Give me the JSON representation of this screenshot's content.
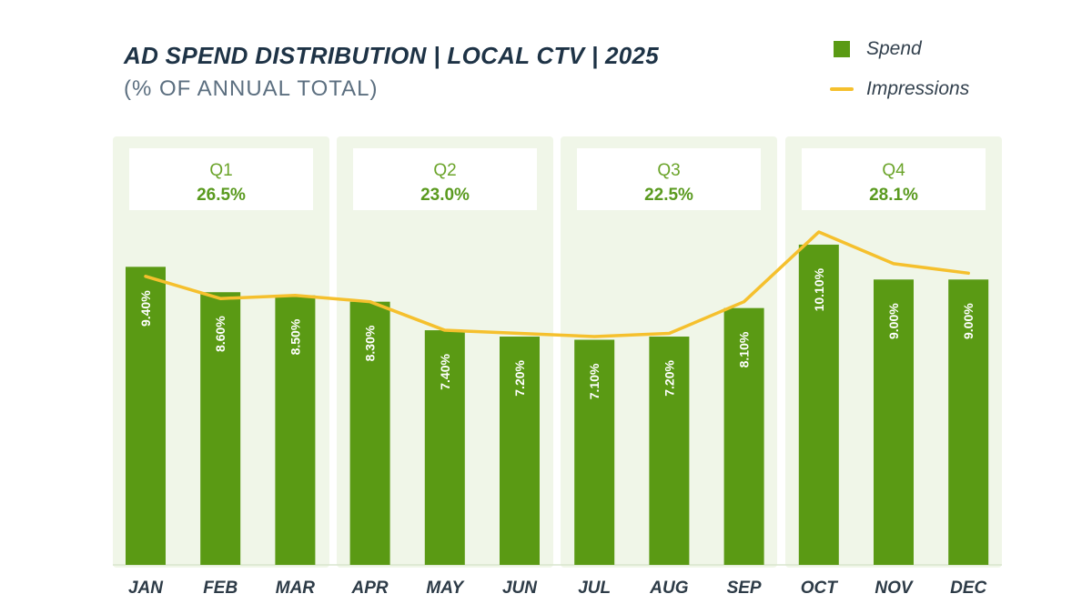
{
  "chart_data": {
    "type": "bar",
    "title": "AD SPEND DISTRIBUTION | LOCAL CTV | 2025",
    "subtitle": "(% OF ANNUAL TOTAL)",
    "categories": [
      "JAN",
      "FEB",
      "MAR",
      "APR",
      "MAY",
      "JUN",
      "JUL",
      "AUG",
      "SEP",
      "OCT",
      "NOV",
      "DEC"
    ],
    "series": [
      {
        "name": "Spend",
        "kind": "bar",
        "color": "#5a9a14",
        "values": [
          9.4,
          8.6,
          8.5,
          8.3,
          7.4,
          7.2,
          7.1,
          7.2,
          8.1,
          10.1,
          9.0,
          9.0
        ],
        "labels": [
          "9.40%",
          "8.60%",
          "8.50%",
          "8.30%",
          "7.40%",
          "7.20%",
          "7.10%",
          "7.20%",
          "8.10%",
          "10.10%",
          "9.00%",
          "9.00%"
        ]
      },
      {
        "name": "Impressions",
        "kind": "line",
        "color": "#f5c02d",
        "values": [
          9.1,
          8.4,
          8.5,
          8.3,
          7.4,
          7.3,
          7.2,
          7.3,
          8.3,
          10.5,
          9.5,
          9.2
        ]
      }
    ],
    "quarters": [
      {
        "name": "Q1",
        "value": "26.5%",
        "months": [
          0,
          2
        ]
      },
      {
        "name": "Q2",
        "value": "23.0%",
        "months": [
          3,
          5
        ]
      },
      {
        "name": "Q3",
        "value": "22.5%",
        "months": [
          6,
          8
        ]
      },
      {
        "name": "Q4",
        "value": "28.1%",
        "months": [
          9,
          11
        ]
      }
    ],
    "ylim": [
      0,
      10.5
    ],
    "xlabel": "",
    "ylabel": "",
    "legend": "top-right",
    "grid": false,
    "colors": {
      "panel": "#f0f6e8",
      "quarter_text": "#6ba42a",
      "quarter_value": "#5a9a1f",
      "month_text": "#2d3b47"
    }
  }
}
